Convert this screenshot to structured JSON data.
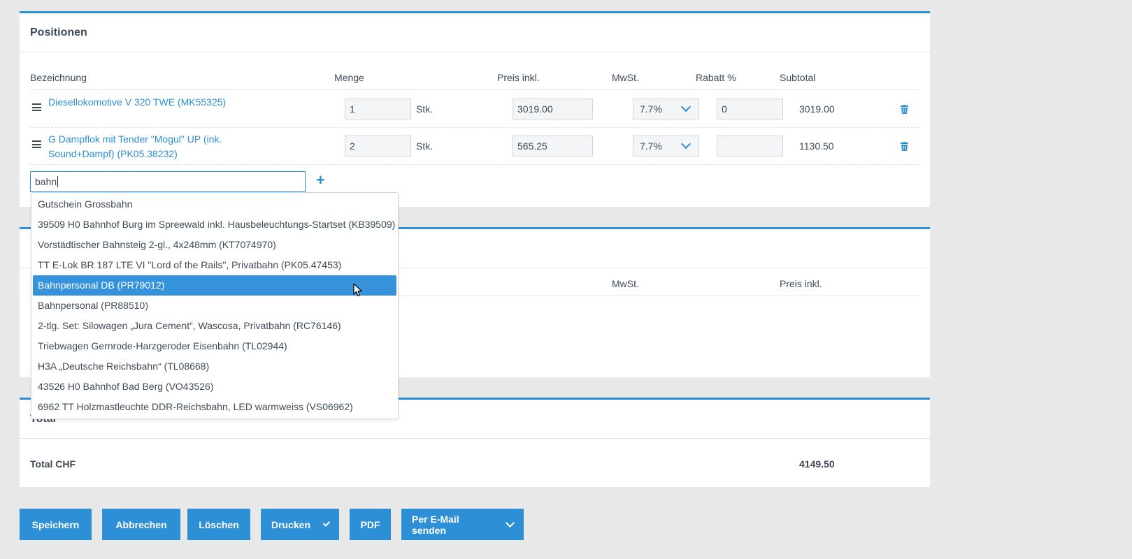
{
  "positions": {
    "title": "Positionen",
    "columns": [
      "Bezeichnung",
      "Menge",
      "Preis inkl.",
      "MwSt.",
      "Rabatt %",
      "Subtotal"
    ],
    "rows": [
      {
        "name": "Diesellokomotive V 320 TWE (MK55325)",
        "qty": "1",
        "unit": "Stk.",
        "price": "3019.00",
        "vat": "7.7%",
        "discount": "0",
        "subtotal": "3019.00"
      },
      {
        "name": "G Dampflok mit Tender \"Mogul\" UP (ink. Sound+Dampf) (PK05.38232)",
        "qty": "2",
        "unit": "Stk.",
        "price": "565.25",
        "vat": "7.7%",
        "discount": "",
        "subtotal": "1130.50"
      }
    ],
    "search_value": "bahn",
    "add_icon": "+"
  },
  "dropdown": {
    "items": [
      "Gutschein Grossbahn",
      "39509 H0 Bahnhof Burg im Spreewald inkl. Hausbeleuchtungs-Startset (KB39509)",
      "Vorstädtischer Bahnsteig 2-gl., 4x248mm (KT7074970)",
      "TT E-Lok BR 187 LTE VI \"Lord of the Rails\", Privatbahn (PK05.47453)",
      "Bahnpersonal DB (PR79012)",
      "Bahnpersonal (PR88510)",
      "2-tlg. Set: Silowagen „Jura Cement“, Wascosa, Privatbahn (RC76146)",
      "Triebwagen Gernrode-Harzgeroder Eisenbahn (TL02944)",
      "H3A „Deutsche Reichsbahn“ (TL08668)",
      "43526 H0 Bahnhof Bad Berg (VO43526)",
      "6962 TT Holzmastleuchte DDR-Reichsbahn, LED warmweiss (VS06962)"
    ],
    "selected_index": 4
  },
  "second_panel": {
    "col_vat": "MwSt.",
    "col_price": "Preis inkl."
  },
  "total": {
    "title": "Total",
    "label": "Total CHF",
    "value": "4149.50"
  },
  "buttons": {
    "save": "Speichern",
    "cancel": "Abbrechen",
    "delete": "Löschen",
    "print": "Drucken",
    "pdf": "PDF",
    "email": "Per E-Mail senden"
  },
  "colors": {
    "accent": "#2d8fd6",
    "selected": "#3592db",
    "background": "#e8e8e8"
  }
}
